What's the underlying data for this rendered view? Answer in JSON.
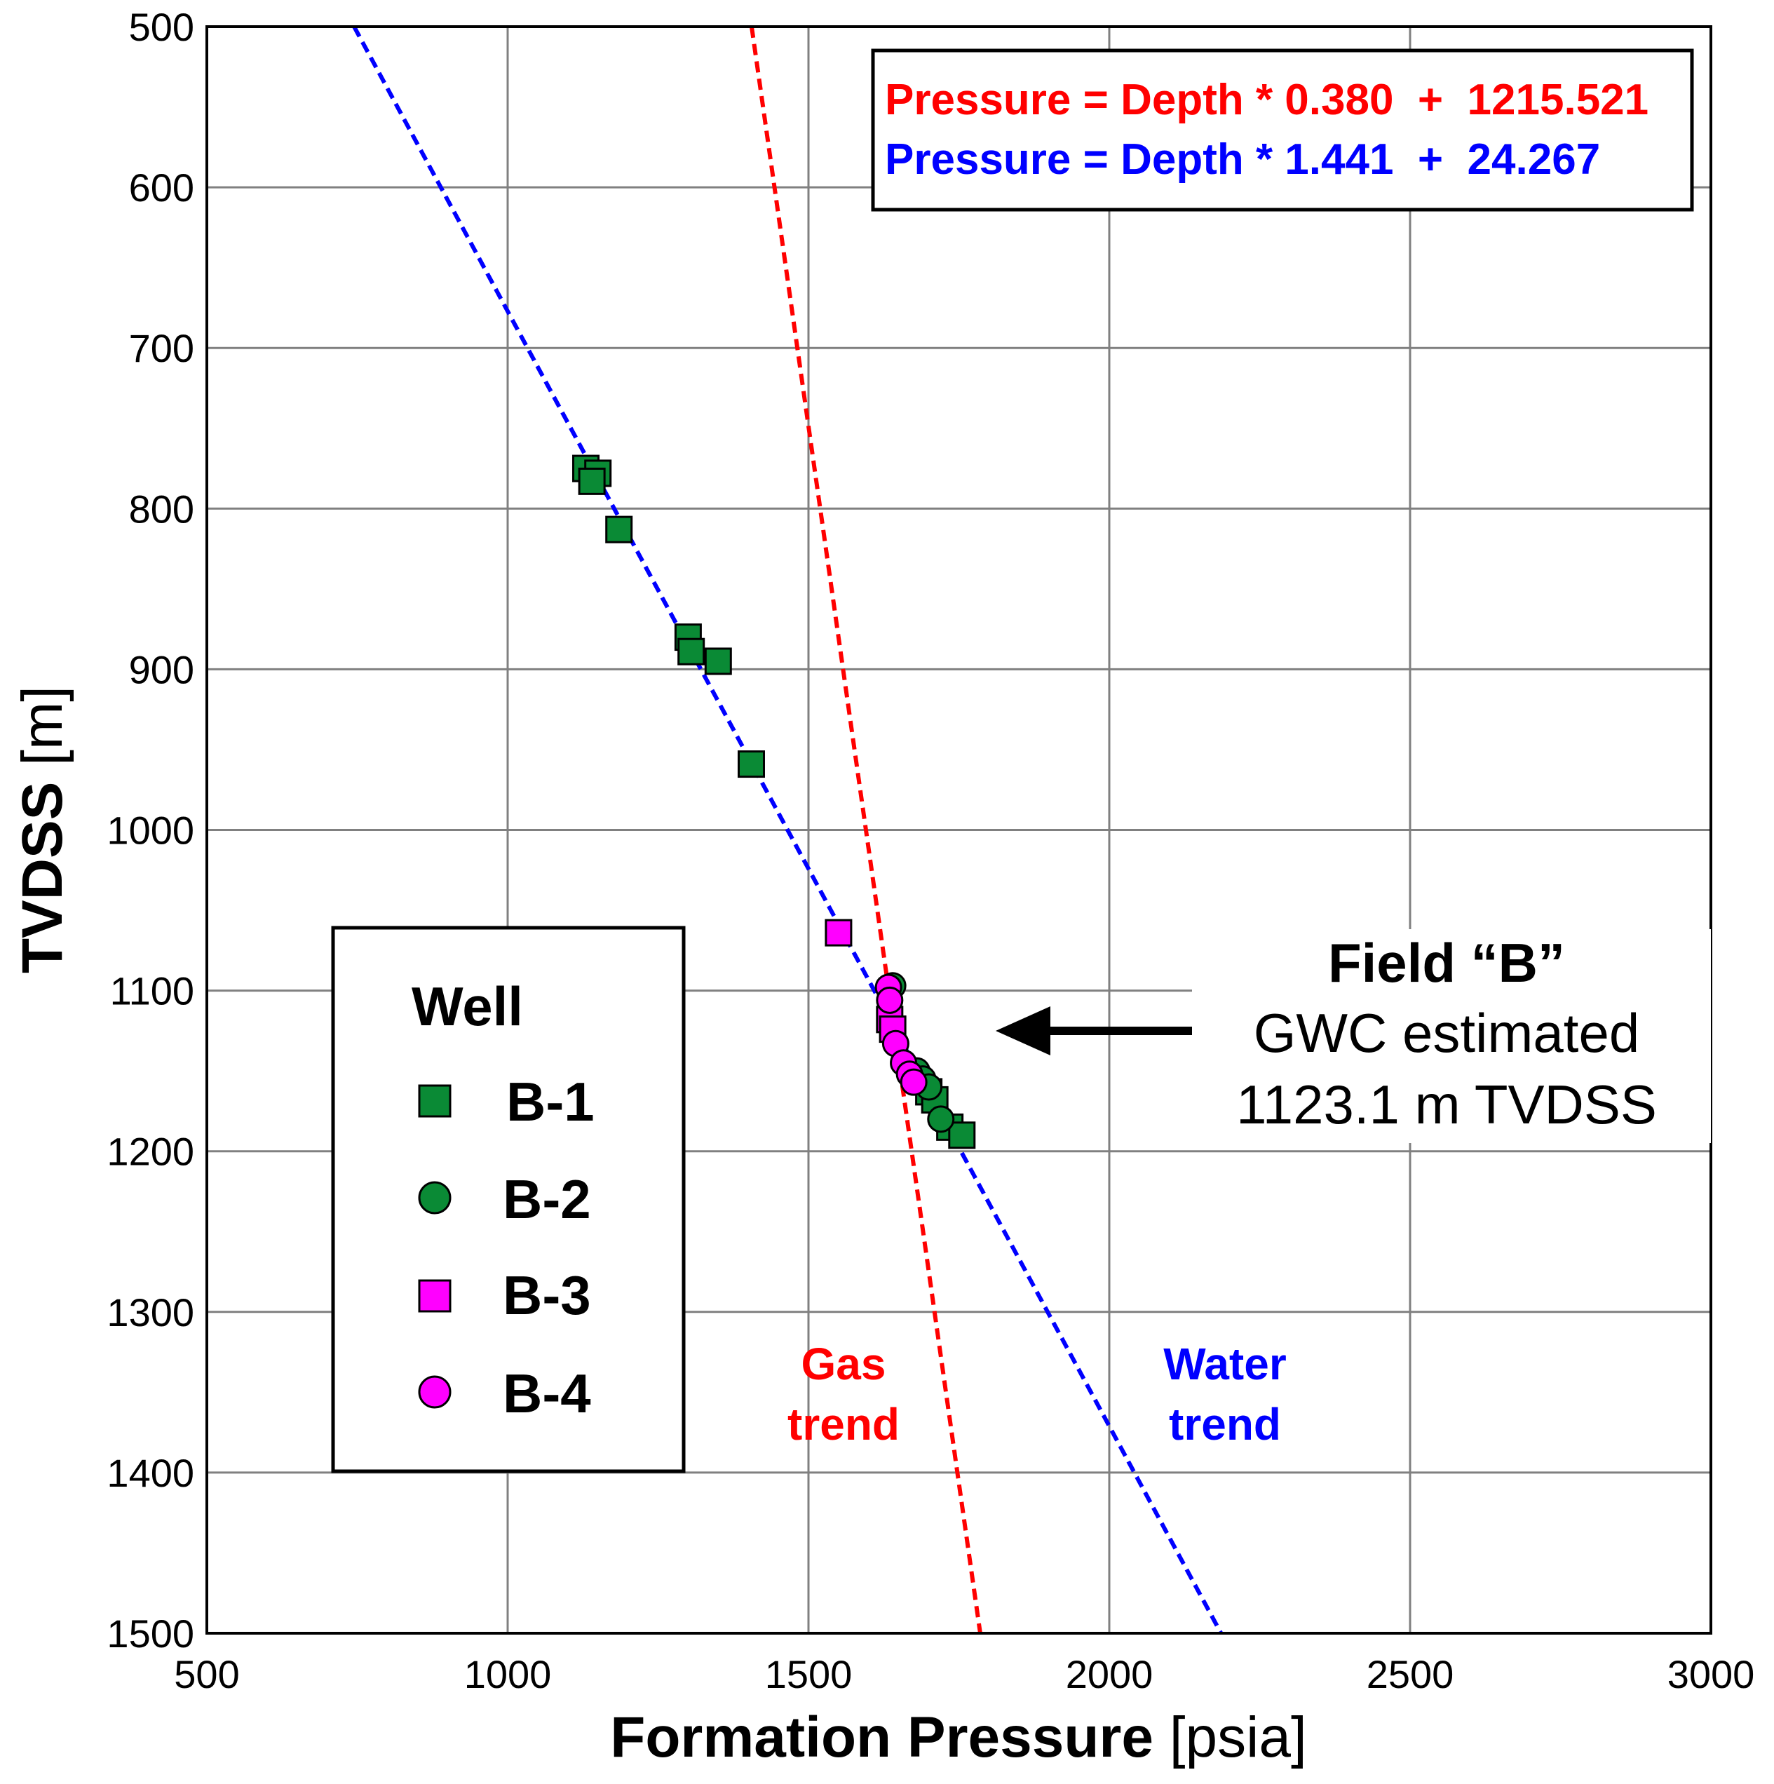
{
  "chart_data": {
    "type": "scatter",
    "xlabel": "Formation Pressure",
    "xlabel_unit": "[psia]",
    "ylabel": "TVDSS",
    "ylabel_unit": "[m]",
    "xlim": [
      500,
      3000
    ],
    "ylim": [
      500,
      1500
    ],
    "y_inverted": true,
    "grid": true,
    "x_ticks": [
      500,
      1000,
      1500,
      2000,
      2500,
      3000
    ],
    "y_ticks": [
      500,
      600,
      700,
      800,
      900,
      1000,
      1100,
      1200,
      1300,
      1400,
      1500
    ],
    "equations": [
      {
        "text": "Pressure = Depth * 0.380  +  1215.521",
        "color": "#ff0000"
      },
      {
        "text": "Pressure = Depth * 1.441  +  24.267",
        "color": "#0000ff"
      }
    ],
    "trend_lines": [
      {
        "name": "Gas trend",
        "label_lines": [
          "Gas",
          "trend"
        ],
        "slope": 0.38,
        "intercept": 1215.521,
        "color": "#ff0000",
        "style": "dashed"
      },
      {
        "name": "Water trend",
        "label_lines": [
          "Water",
          "trend"
        ],
        "slope": 1.441,
        "intercept": 24.267,
        "color": "#0000ff",
        "style": "dashed"
      }
    ],
    "legend": {
      "title": "Well",
      "position": "left-middle"
    },
    "series": [
      {
        "name": "B-1",
        "marker": "square",
        "color": "#0a8a35",
        "points": [
          [
            1130,
            775
          ],
          [
            1150,
            778
          ],
          [
            1140,
            783
          ],
          [
            1185,
            813
          ],
          [
            1300,
            880
          ],
          [
            1305,
            889
          ],
          [
            1350,
            895
          ],
          [
            1405,
            959
          ],
          [
            1700,
            1163
          ],
          [
            1710,
            1168
          ],
          [
            1735,
            1185
          ],
          [
            1755,
            1190
          ]
        ]
      },
      {
        "name": "B-2",
        "marker": "circle",
        "color": "#0a8a35",
        "points": [
          [
            1640,
            1097
          ],
          [
            1680,
            1150
          ],
          [
            1690,
            1155
          ],
          [
            1700,
            1160
          ],
          [
            1720,
            1180
          ]
        ]
      },
      {
        "name": "B-3",
        "marker": "square",
        "color": "#ff00ff",
        "points": [
          [
            1550,
            1064
          ],
          [
            1635,
            1118
          ],
          [
            1640,
            1124
          ]
        ]
      },
      {
        "name": "B-4",
        "marker": "circle",
        "color": "#ff00ff",
        "points": [
          [
            1633,
            1098
          ],
          [
            1635,
            1106
          ],
          [
            1645,
            1133
          ],
          [
            1658,
            1145
          ],
          [
            1668,
            1152
          ],
          [
            1675,
            1157
          ]
        ]
      }
    ],
    "annotation": {
      "title": "Field “B”",
      "lines": [
        "GWC estimated",
        "1123.1 m TVDSS"
      ],
      "arrow": "left"
    }
  },
  "colors": {
    "grid": "#808080",
    "axis": "#000000",
    "gas": "#ff0000",
    "water": "#0000ff",
    "green": "#0a8a35",
    "magenta": "#ff00ff"
  }
}
